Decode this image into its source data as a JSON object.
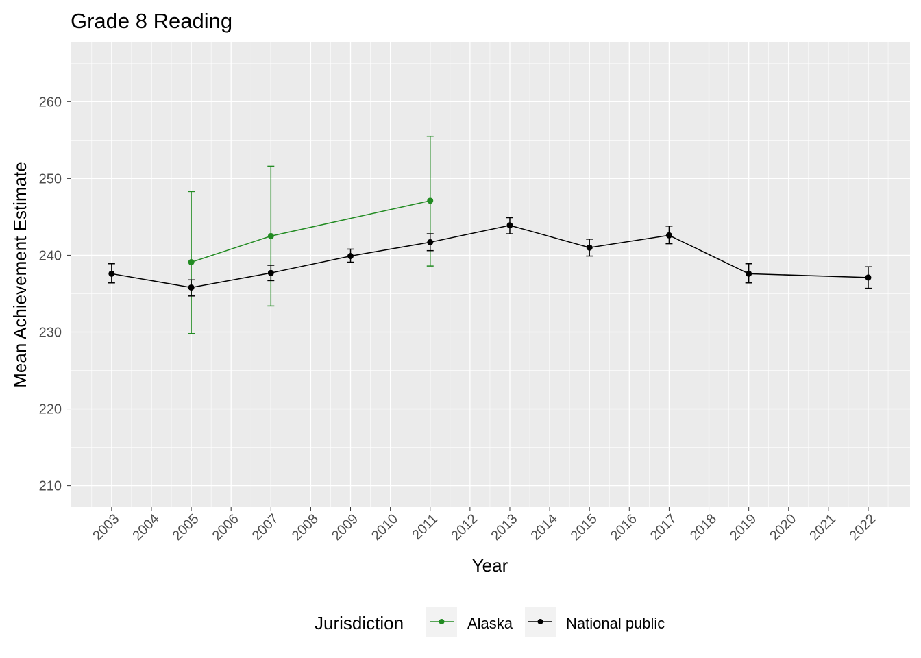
{
  "chart_data": {
    "type": "line",
    "title": "Grade 8 Reading",
    "xlabel": "Year",
    "ylabel": "Mean Achievement Estimate",
    "xlim": [
      2001.97,
      2023.05
    ],
    "ylim": [
      207.2,
      267.7
    ],
    "x_ticks": [
      2003,
      2004,
      2005,
      2006,
      2007,
      2008,
      2009,
      2010,
      2011,
      2012,
      2013,
      2014,
      2015,
      2016,
      2017,
      2018,
      2019,
      2020,
      2021,
      2022
    ],
    "y_ticks": [
      210,
      220,
      230,
      240,
      250,
      260
    ],
    "grid": true,
    "legend": {
      "title": "Jurisdiction",
      "position": "bottom"
    },
    "series": [
      {
        "name": "Alaska",
        "color": "#228B22",
        "x": [
          2005,
          2007,
          2011
        ],
        "y": [
          239.1,
          242.5,
          247.1
        ],
        "lower": [
          229.8,
          233.4,
          238.6
        ],
        "upper": [
          248.3,
          251.6,
          255.5
        ]
      },
      {
        "name": "National public",
        "color": "#000000",
        "x": [
          2003,
          2005,
          2007,
          2009,
          2011,
          2013,
          2015,
          2017,
          2019,
          2022
        ],
        "y": [
          237.6,
          235.8,
          237.7,
          239.9,
          241.7,
          243.9,
          241.0,
          242.6,
          237.6,
          237.1
        ],
        "lower": [
          236.4,
          234.7,
          236.7,
          239.1,
          240.6,
          242.8,
          239.9,
          241.5,
          236.4,
          235.7
        ],
        "upper": [
          238.9,
          236.8,
          238.7,
          240.8,
          242.8,
          244.9,
          242.1,
          243.8,
          238.9,
          238.5
        ]
      }
    ]
  }
}
